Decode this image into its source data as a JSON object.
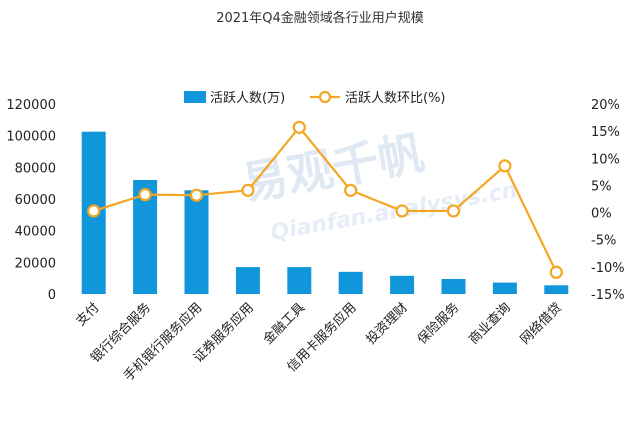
{
  "watermark": {
    "cn": "易观千帆",
    "en": "Qianfan.analysys.cn"
  },
  "chart_data": {
    "type": "bar",
    "title": "2021年Q4金融领域各行业用户规模",
    "categories": [
      "支付",
      "银行综合服务",
      "手机银行服务应用",
      "证券服务应用",
      "金融工具",
      "信用卡服务应用",
      "投资理财",
      "保险服务",
      "商业查询",
      "网络借贷"
    ],
    "series": [
      {
        "name": "活跃人数(万)",
        "kind": "bar",
        "axis": "left",
        "color": "#1296db",
        "values": [
          102500,
          72000,
          65500,
          17000,
          17000,
          14000,
          11500,
          9500,
          7200,
          5500
        ]
      },
      {
        "name": "活跃人数环比(%)",
        "kind": "line",
        "axis": "right",
        "color": "#f5a623",
        "values": [
          0.3,
          3.3,
          3.2,
          4.1,
          15.7,
          4.1,
          0.3,
          0.3,
          8.6,
          -11.0
        ]
      }
    ],
    "ylim": [
      0,
      120000
    ],
    "yticks": [
      "0",
      "20000",
      "40000",
      "60000",
      "80000",
      "100000",
      "120000"
    ],
    "y2lim": [
      -15,
      20
    ],
    "y2ticks": [
      "-15%",
      "-10%",
      "-5%",
      "0%",
      "5%",
      "10%",
      "15%",
      "20%"
    ],
    "legend_position": "top-center",
    "grid": false
  }
}
